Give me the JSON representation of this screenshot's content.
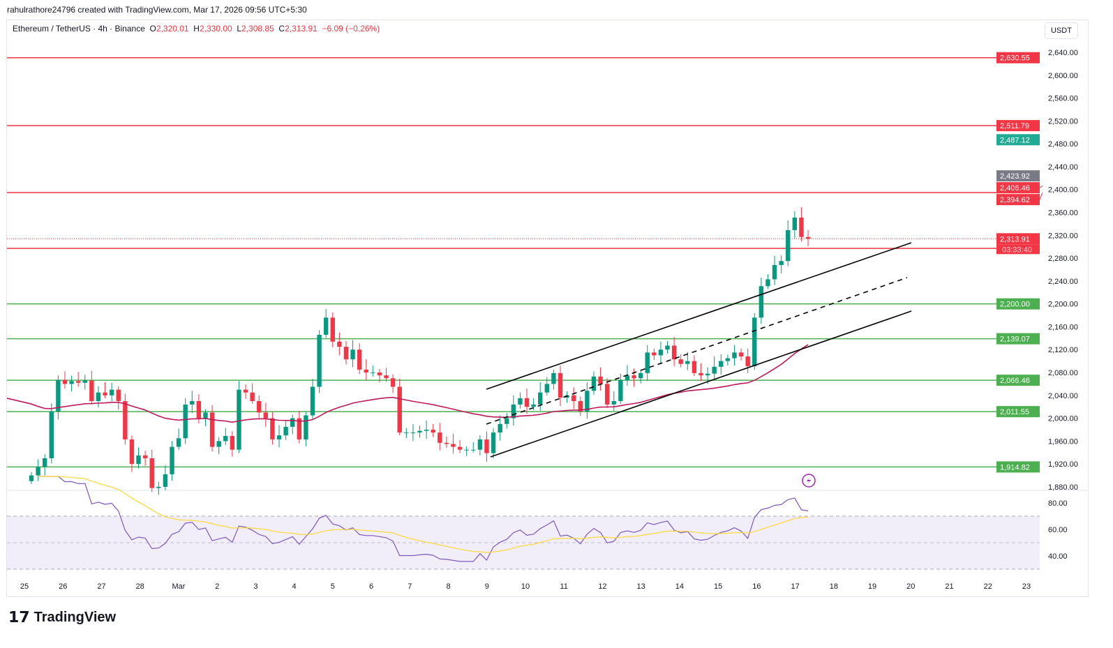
{
  "credit": "rahulrathore24796 created with TradingView.com, Mar 17, 2026 09:56 UTC+5:30",
  "legend": {
    "symbol": "Ethereum / TetherUS · 4h · Binance",
    "o_label": "O",
    "o": "2,320.01",
    "h_label": "H",
    "h": "2,330.00",
    "l_label": "L",
    "l": "2,308.85",
    "c_label": "C",
    "c": "2,313.91",
    "change": "−6.09 (−0.26%)"
  },
  "currency": "USDT",
  "logo": "TradingView",
  "colors": {
    "up": "#089981",
    "down": "#f23645",
    "support": "#4caf50",
    "resistance": "#f23645",
    "ema": "#c2185b",
    "rsi": "#7e57c2",
    "rsi_ma": "#fdd835"
  },
  "chart_data": {
    "type": "candlestick",
    "title": "Ethereum / TetherUS 4h",
    "ylim": [
      1870,
      2655
    ],
    "y_ticks": [
      2640,
      2600,
      2560,
      2520,
      2480,
      2440,
      2400,
      2360,
      2320,
      2280,
      2240,
      2200,
      2160,
      2120,
      2080,
      2040,
      2000,
      1960,
      1920,
      1880
    ],
    "x_ticks": [
      "25",
      "26",
      "27",
      "28",
      "Mar",
      "2",
      "3",
      "4",
      "5",
      "6",
      "7",
      "8",
      "9",
      "10",
      "11",
      "12",
      "13",
      "14",
      "15",
      "16",
      "17",
      "18",
      "19",
      "20",
      "21",
      "22",
      "23"
    ],
    "closes": [
      1900,
      1915,
      1930,
      2012,
      2067,
      2060,
      2065,
      2062,
      2066,
      2030,
      2045,
      2040,
      2050,
      2030,
      1963,
      1920,
      1935,
      1930,
      1878,
      1880,
      1902,
      1950,
      1965,
      2024,
      2030,
      2000,
      2010,
      1950,
      1960,
      1969,
      1945,
      2050,
      2045,
      2030,
      2010,
      2000,
      1963,
      1970,
      1985,
      2000,
      1963,
      2005,
      2055,
      2146,
      2176,
      2134,
      2125,
      2103,
      2120,
      2085,
      2080,
      2080,
      2075,
      2070,
      2055,
      1975,
      1975,
      1975,
      1978,
      1980,
      1975,
      1957,
      1955,
      1950,
      1945,
      1945,
      1945,
      1963,
      1939,
      1975,
      1990,
      2000,
      2024,
      2035,
      2020,
      2024,
      2045,
      2060,
      2079,
      2036,
      2040,
      2030,
      2012,
      2048,
      2073,
      2060,
      2024,
      2030,
      2067,
      2075,
      2070,
      2079,
      2115,
      2110,
      2120,
      2127,
      2103,
      2095,
      2100,
      2079,
      2075,
      2078,
      2090,
      2100,
      2105,
      2115,
      2108,
      2091,
      2176,
      2231,
      2243,
      2268,
      2275,
      2329,
      2351,
      2317,
      2313.91
    ],
    "resistance_levels": [
      {
        "price": 2630.55,
        "label": "2,630.55"
      },
      {
        "price": 2511.79,
        "label": "2,511.79"
      },
      {
        "price": 2394.62,
        "label": "2,394.62"
      },
      {
        "price": 2297
      }
    ],
    "support_levels": [
      {
        "price": 2200,
        "label": "2,200.00"
      },
      {
        "price": 2139.07,
        "label": "2,139.07"
      },
      {
        "price": 2066.46,
        "label": "2,066.46"
      },
      {
        "price": 2011.55,
        "label": "2,011.55"
      },
      {
        "price": 1914.82,
        "label": "1,914.82"
      }
    ],
    "price_tags": [
      {
        "price": 2487.12,
        "label": "2,487.12",
        "color": "#22ab94"
      },
      {
        "price": 2423.92,
        "label": "2,423.92",
        "color": "#787b86"
      },
      {
        "price": 2406.46,
        "label": "2,406.46",
        "color": "#f23645"
      }
    ],
    "last_price": {
      "price": 2313.91,
      "label": "2,313.91",
      "countdown": "03:33:40"
    },
    "rsi": {
      "y_ticks": [
        80,
        60,
        40
      ],
      "upper": 70,
      "lower": 30,
      "period": 14
    }
  }
}
